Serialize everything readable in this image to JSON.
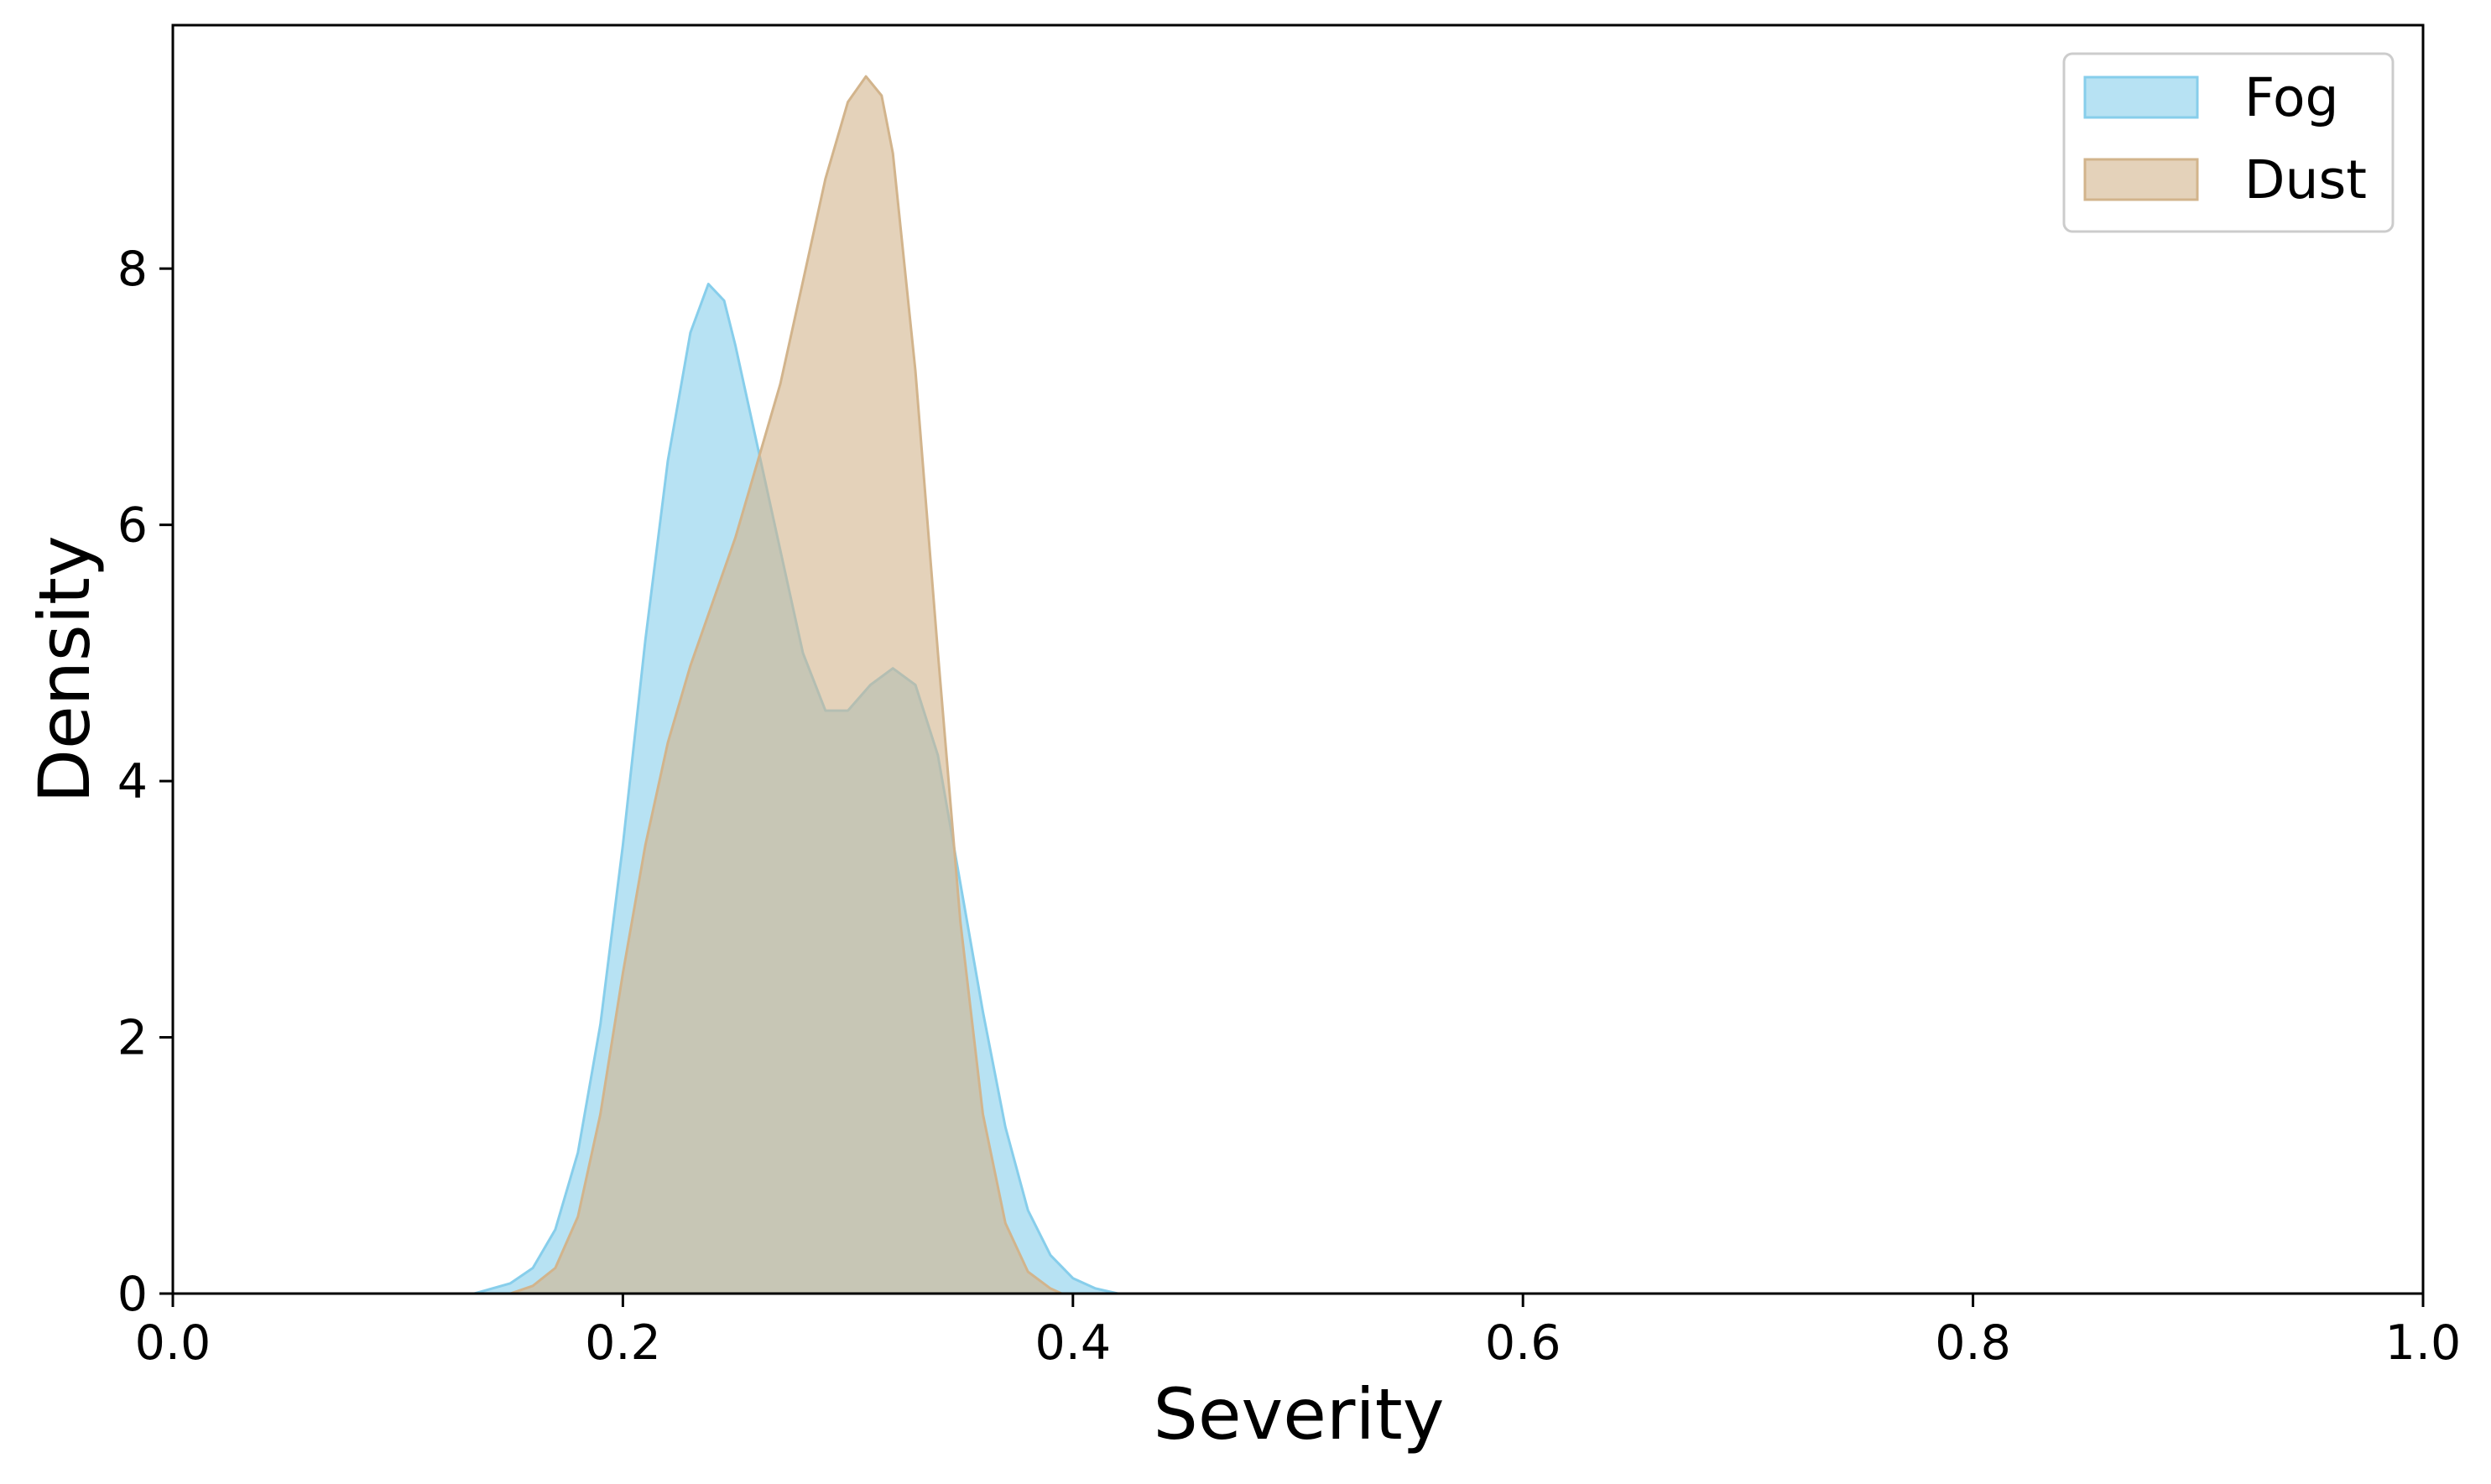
{
  "chart_data": {
    "type": "area",
    "xlabel": "Severity",
    "ylabel": "Density",
    "xlim": [
      0.0,
      1.0
    ],
    "ylim": [
      0,
      9.9
    ],
    "x_ticks": [
      "0.0",
      "0.2",
      "0.4",
      "0.6",
      "0.8",
      "1.0"
    ],
    "y_ticks": [
      "0",
      "2",
      "4",
      "6",
      "8"
    ],
    "legend_position": "top-right",
    "grid": false,
    "series": [
      {
        "name": "Fog",
        "color": "#87ceeb",
        "fill_opacity": 0.6,
        "points": [
          [
            0.134,
            0.0
          ],
          [
            0.15,
            0.08
          ],
          [
            0.16,
            0.2
          ],
          [
            0.17,
            0.5
          ],
          [
            0.18,
            1.1
          ],
          [
            0.19,
            2.1
          ],
          [
            0.2,
            3.5
          ],
          [
            0.21,
            5.1
          ],
          [
            0.22,
            6.5
          ],
          [
            0.23,
            7.5
          ],
          [
            0.238,
            7.88
          ],
          [
            0.245,
            7.75
          ],
          [
            0.25,
            7.4
          ],
          [
            0.26,
            6.6
          ],
          [
            0.27,
            5.8
          ],
          [
            0.28,
            5.0
          ],
          [
            0.29,
            4.55
          ],
          [
            0.3,
            4.55
          ],
          [
            0.31,
            4.75
          ],
          [
            0.32,
            4.88
          ],
          [
            0.33,
            4.75
          ],
          [
            0.34,
            4.2
          ],
          [
            0.35,
            3.2
          ],
          [
            0.36,
            2.2
          ],
          [
            0.37,
            1.3
          ],
          [
            0.38,
            0.65
          ],
          [
            0.39,
            0.3
          ],
          [
            0.4,
            0.12
          ],
          [
            0.41,
            0.04
          ],
          [
            0.42,
            0.0
          ]
        ]
      },
      {
        "name": "Dust",
        "color": "#d2b48c",
        "fill_opacity": 0.6,
        "points": [
          [
            0.15,
            0.0
          ],
          [
            0.16,
            0.06
          ],
          [
            0.17,
            0.2
          ],
          [
            0.18,
            0.6
          ],
          [
            0.19,
            1.4
          ],
          [
            0.2,
            2.5
          ],
          [
            0.21,
            3.5
          ],
          [
            0.22,
            4.3
          ],
          [
            0.23,
            4.9
          ],
          [
            0.24,
            5.4
          ],
          [
            0.25,
            5.9
          ],
          [
            0.26,
            6.5
          ],
          [
            0.27,
            7.1
          ],
          [
            0.28,
            7.9
          ],
          [
            0.29,
            8.7
          ],
          [
            0.3,
            9.3
          ],
          [
            0.308,
            9.5
          ],
          [
            0.315,
            9.35
          ],
          [
            0.32,
            8.9
          ],
          [
            0.33,
            7.2
          ],
          [
            0.34,
            5.0
          ],
          [
            0.35,
            2.9
          ],
          [
            0.36,
            1.4
          ],
          [
            0.37,
            0.55
          ],
          [
            0.38,
            0.17
          ],
          [
            0.39,
            0.04
          ],
          [
            0.395,
            0.0
          ]
        ]
      }
    ]
  }
}
